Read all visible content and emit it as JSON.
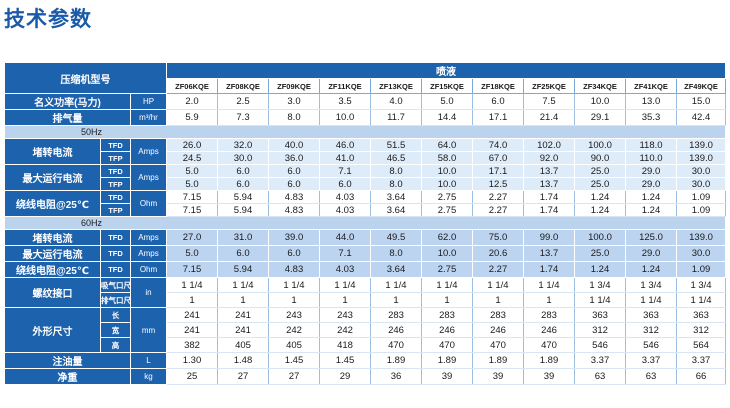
{
  "title": "技术参数",
  "header": {
    "label": "压缩机型号",
    "group": "喷液",
    "models": [
      "ZF06KQE",
      "ZF08KQE",
      "ZF09KQE",
      "ZF11KQE",
      "ZF13KQE",
      "ZF15KQE",
      "ZF18KQE",
      "ZF25KQE",
      "ZF34KQE",
      "ZF41KQE",
      "ZF49KQE"
    ]
  },
  "rows": {
    "capacity": {
      "label": "名义功率(马力)",
      "unit": "HP",
      "values": [
        "2.0",
        "2.5",
        "3.0",
        "3.5",
        "4.0",
        "5.0",
        "6.0",
        "7.5",
        "10.0",
        "13.0",
        "15.0"
      ]
    },
    "displacement": {
      "label": "排气量",
      "unit": "m³/hr",
      "values": [
        "5.9",
        "7.3",
        "8.0",
        "10.0",
        "11.7",
        "14.4",
        "17.1",
        "21.4",
        "29.1",
        "35.3",
        "42.4"
      ]
    },
    "hz50": {
      "label": "50Hz"
    },
    "lra50": {
      "label": "堵转电流",
      "unit": "Amps",
      "tfd": {
        "label": "TFD",
        "values": [
          "26.0",
          "32.0",
          "40.0",
          "46.0",
          "51.5",
          "64.0",
          "74.0",
          "102.0",
          "100.0",
          "118.0",
          "139.0"
        ]
      },
      "tfp": {
        "label": "TFP",
        "values": [
          "24.5",
          "30.0",
          "36.0",
          "41.0",
          "46.5",
          "58.0",
          "67.0",
          "92.0",
          "90.0",
          "110.0",
          "139.0"
        ]
      }
    },
    "mcc50": {
      "label": "最大运行电流",
      "unit": "Amps",
      "tfd": {
        "label": "TFD",
        "values": [
          "5.0",
          "6.0",
          "6.0",
          "7.1",
          "8.0",
          "10.0",
          "17.1",
          "13.7",
          "25.0",
          "29.0",
          "30.0"
        ]
      },
      "tfp": {
        "label": "TFP",
        "values": [
          "5.0",
          "6.0",
          "6.0",
          "6.0",
          "8.0",
          "10.0",
          "12.5",
          "13.7",
          "25.0",
          "29.0",
          "30.0"
        ]
      }
    },
    "res50": {
      "label": "绕线电阻@25℃",
      "unit": "Ohm",
      "tfd": {
        "label": "TFD",
        "values": [
          "7.15",
          "5.94",
          "4.83",
          "4.03",
          "3.64",
          "2.75",
          "2.27",
          "1.74",
          "1.24",
          "1.24",
          "1.09"
        ]
      },
      "tfp": {
        "label": "TFP",
        "values": [
          "7.15",
          "5.94",
          "4.83",
          "4.03",
          "3.64",
          "2.75",
          "2.27",
          "1.74",
          "1.24",
          "1.24",
          "1.09"
        ]
      }
    },
    "hz60": {
      "label": "60Hz"
    },
    "lra60": {
      "label": "堵转电流",
      "sub": "TFD",
      "unit": "Amps",
      "values": [
        "27.0",
        "31.0",
        "39.0",
        "44.0",
        "49.5",
        "62.0",
        "75.0",
        "99.0",
        "100.0",
        "125.0",
        "139.0"
      ]
    },
    "mcc60": {
      "label": "最大运行电流",
      "sub": "TFD",
      "unit": "Amps",
      "values": [
        "5.0",
        "6.0",
        "6.0",
        "7.1",
        "8.0",
        "10.0",
        "20.6",
        "13.7",
        "25.0",
        "29.0",
        "30.0"
      ]
    },
    "res60": {
      "label": "绕线电阻@25℃",
      "sub": "TFD",
      "unit": "Ohm",
      "values": [
        "7.15",
        "5.94",
        "4.83",
        "4.03",
        "3.64",
        "2.75",
        "2.27",
        "1.74",
        "1.24",
        "1.24",
        "1.09"
      ]
    },
    "thread": {
      "label": "螺纹接口",
      "unit": "in",
      "suction": {
        "label": "吸气口尺寸",
        "values": [
          "1 1/4",
          "1 1/4",
          "1 1/4",
          "1 1/4",
          "1 1/4",
          "1 1/4",
          "1 1/4",
          "1 1/4",
          "1 3/4",
          "1 3/4",
          "1 3/4"
        ]
      },
      "discharge": {
        "label": "排气口尺寸",
        "values": [
          "1",
          "1",
          "1",
          "1",
          "1",
          "1",
          "1",
          "1",
          "1 1/4",
          "1 1/4",
          "1 1/4"
        ]
      }
    },
    "dims": {
      "label": "外形尺寸",
      "unit": "mm",
      "length": {
        "label": "长",
        "values": [
          "241",
          "241",
          "243",
          "243",
          "283",
          "283",
          "283",
          "283",
          "363",
          "363",
          "363"
        ]
      },
      "width": {
        "label": "宽",
        "values": [
          "241",
          "241",
          "242",
          "242",
          "246",
          "246",
          "246",
          "246",
          "312",
          "312",
          "312"
        ]
      },
      "height": {
        "label": "高",
        "values": [
          "382",
          "405",
          "405",
          "418",
          "470",
          "470",
          "470",
          "470",
          "546",
          "546",
          "564"
        ]
      }
    },
    "oil": {
      "label": "注油量",
      "unit": "L",
      "values": [
        "1.30",
        "1.48",
        "1.45",
        "1.45",
        "1.89",
        "1.89",
        "1.89",
        "1.89",
        "3.37",
        "3.37",
        "3.37"
      ]
    },
    "weight": {
      "label": "净重",
      "unit": "kg",
      "values": [
        "25",
        "27",
        "27",
        "29",
        "36",
        "39",
        "39",
        "39",
        "63",
        "63",
        "66"
      ]
    }
  }
}
